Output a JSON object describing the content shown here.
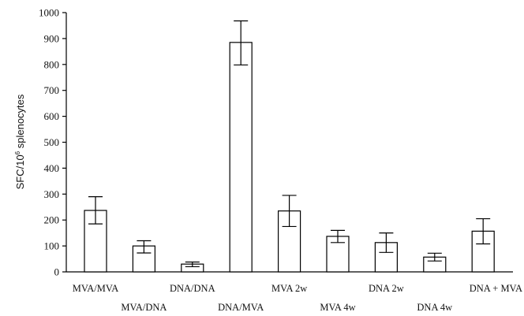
{
  "chart_data": {
    "type": "bar",
    "title": "",
    "xlabel": "",
    "ylabel": {
      "prefix": "SFC/10",
      "superscript": "6",
      "suffix": " splenocytes"
    },
    "ylim": [
      0,
      1000
    ],
    "yticks": [
      "0",
      "100",
      "200",
      "300",
      "400",
      "500",
      "600",
      "700",
      "800",
      "900",
      "1000"
    ],
    "grid": false,
    "legend": "none",
    "categories": [
      "MVA/MVA",
      "MVA/DNA",
      "DNA/DNA",
      "DNA/MVA",
      "MVA 2w",
      "MVA 4w",
      "DNA 2w",
      "DNA 4w",
      "DNA + MVA"
    ],
    "label_row": [
      "upper",
      "lower",
      "upper",
      "lower",
      "upper",
      "lower",
      "upper",
      "lower",
      "upper"
    ],
    "values": [
      237,
      100,
      30,
      885,
      235,
      137,
      113,
      57,
      157
    ],
    "error_low": [
      185,
      73,
      20,
      798,
      175,
      113,
      75,
      42,
      108
    ],
    "error_high": [
      290,
      120,
      38,
      968,
      295,
      160,
      150,
      72,
      205
    ],
    "colors": {
      "bar_fill": "#ffffff",
      "stroke": "#000000"
    }
  }
}
